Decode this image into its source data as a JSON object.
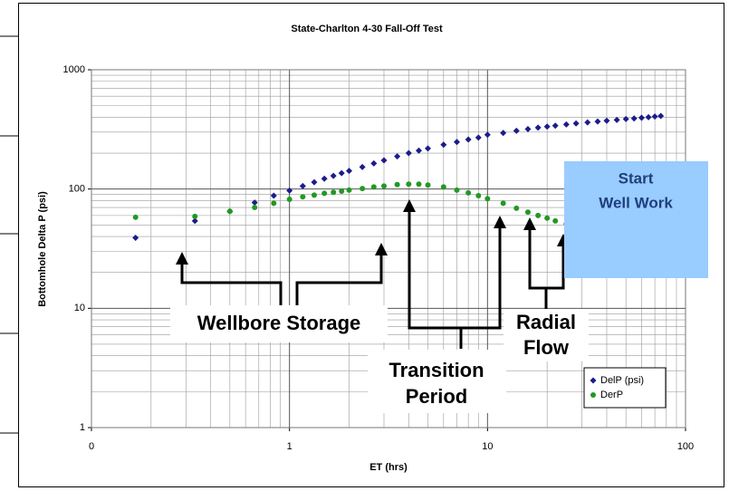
{
  "chart_data": {
    "type": "scatter",
    "title": "State-Charlton 4-30 Fall-Off Test",
    "x_label": "ET (hrs)",
    "y_label": "Bottomhole Delta P (psi)",
    "x_log": true,
    "y_log": true,
    "grid": true,
    "minor_grid": true,
    "legend": "lower right",
    "xlim": [
      0.1,
      100
    ],
    "xticks": [
      {
        "value": 0.1,
        "label": "0"
      },
      1,
      10,
      100
    ],
    "ylim": [
      1,
      1000
    ],
    "yticks": [
      1,
      10,
      100,
      1000
    ],
    "x": [
      0.167,
      0.333,
      0.5,
      0.667,
      0.833,
      1.0,
      1.167,
      1.333,
      1.5,
      1.667,
      1.833,
      2.0,
      2.333,
      2.667,
      3.0,
      3.5,
      4.0,
      4.5,
      5,
      6,
      7,
      8,
      9,
      10,
      12,
      14,
      16,
      18,
      20,
      22,
      25,
      28,
      32,
      36,
      40,
      45,
      50,
      55,
      60,
      65,
      70,
      75
    ],
    "series": [
      {
        "name": "DelP (psi)",
        "color": "#1c1c8c",
        "marker": "diamond",
        "values": [
          39,
          54,
          65,
          77,
          88,
          97,
          106,
          114,
          122,
          129,
          136,
          142,
          153,
          164,
          174,
          188,
          200,
          210,
          219,
          235,
          248,
          260,
          270,
          285,
          295,
          308,
          318,
          327,
          334,
          340,
          348,
          355,
          362,
          368,
          374,
          380,
          386,
          391,
          396,
          400,
          405,
          410
        ]
      },
      {
        "name": "DerP",
        "color": "#229922",
        "marker": "circle",
        "values": [
          58,
          59,
          65,
          70,
          76,
          82,
          86,
          89,
          92,
          94,
          96,
          98,
          101,
          104,
          106,
          109,
          110,
          110,
          108,
          104,
          98,
          93,
          88,
          83,
          76,
          69,
          64,
          60,
          57,
          54,
          51,
          49,
          48,
          47,
          47,
          47,
          47,
          47,
          47,
          47,
          47,
          47
        ]
      }
    ],
    "annotations": [
      {
        "text": "Wellbore Storage"
      },
      {
        "lines": [
          "Transition",
          "Period"
        ]
      },
      {
        "lines": [
          "Radial",
          "Flow"
        ]
      },
      {
        "lines": [
          "Start",
          "Well Work"
        ]
      }
    ]
  }
}
